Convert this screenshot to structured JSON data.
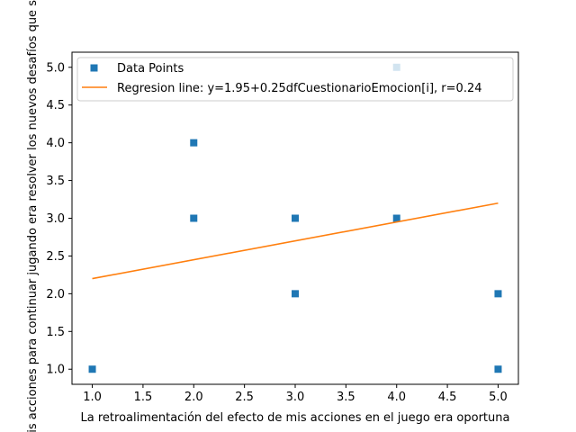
{
  "chart_data": {
    "type": "scatter",
    "title": "",
    "xlabel": "La retroalimentación del efecto de mis acciones en el juego era oportuna",
    "ylabel": "Mis acciones para continuar jugando era resolver los nuevos desafíos que se",
    "xlim": [
      0.8,
      5.2
    ],
    "ylim": [
      0.8,
      5.2
    ],
    "xticks": [
      "1.0",
      "1.5",
      "2.0",
      "2.5",
      "3.0",
      "3.5",
      "4.0",
      "4.5",
      "5.0"
    ],
    "yticks": [
      "1.0",
      "1.5",
      "2.0",
      "2.5",
      "3.0",
      "3.5",
      "4.0",
      "4.5",
      "5.0"
    ],
    "grid": false,
    "legend_position": "top-left",
    "series": [
      {
        "name": "Data Points",
        "kind": "scatter",
        "marker": "square",
        "color": "#1f77b4",
        "points": [
          [
            1,
            1
          ],
          [
            2,
            4
          ],
          [
            2,
            3
          ],
          [
            3,
            3
          ],
          [
            3,
            2
          ],
          [
            4,
            5
          ],
          [
            4,
            3
          ],
          [
            5,
            2
          ],
          [
            5,
            1
          ]
        ]
      },
      {
        "name": "Regresion line: y=1.95+0.25dfCuestionarioEmocion[i], r=0.24",
        "kind": "line",
        "color": "#ff7f0e",
        "intercept": 1.95,
        "slope": 0.25,
        "x_range": [
          1,
          5
        ]
      }
    ]
  }
}
